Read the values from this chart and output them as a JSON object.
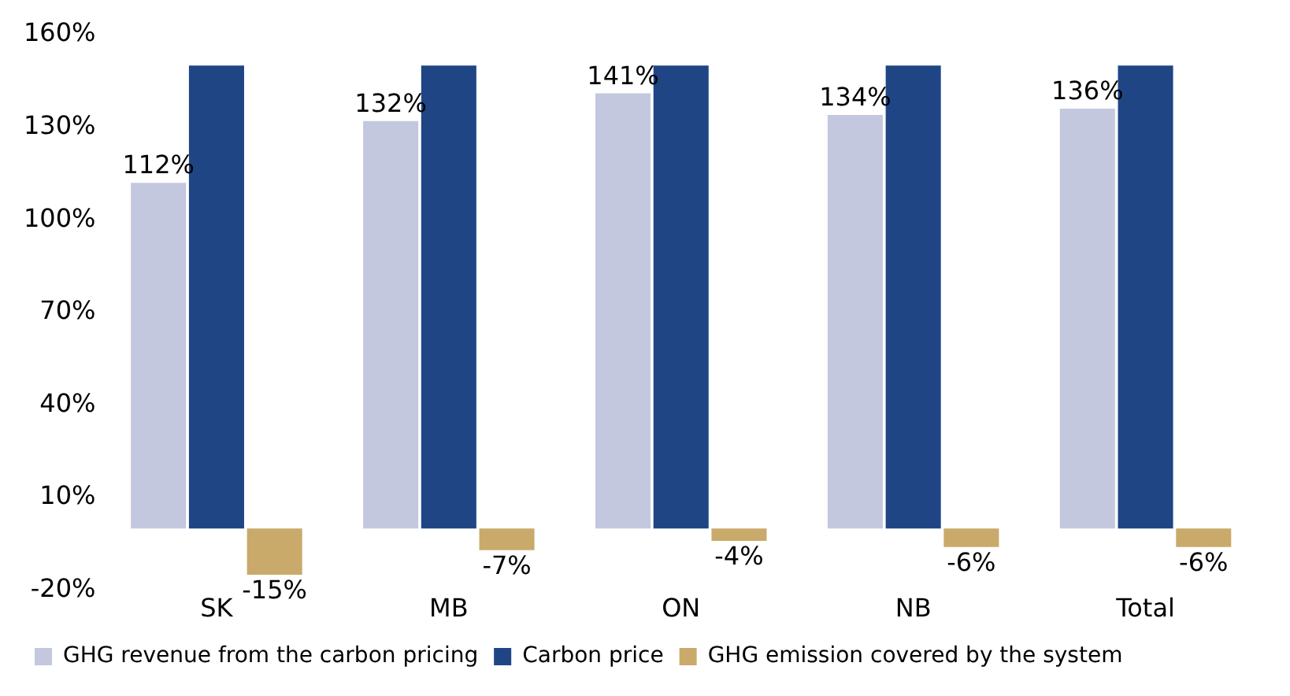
{
  "chart_data": {
    "type": "bar",
    "categories": [
      "SK",
      "MB",
      "ON",
      "NB",
      "Total"
    ],
    "series": [
      {
        "name": "GHG revenue from the carbon pricing",
        "color": "#c3c8de",
        "values": [
          112,
          132,
          141,
          134,
          136
        ],
        "value_labels": [
          "112%",
          "132%",
          "141%",
          "134%",
          "136%"
        ]
      },
      {
        "name": "Carbon price",
        "color": "#1f4585",
        "values": [
          150,
          150,
          150,
          150,
          150
        ]
      },
      {
        "name": "GHG emission covered by the system",
        "color": "#c9aa6b",
        "values": [
          -15,
          -7,
          -4,
          -6,
          -6
        ],
        "value_labels": [
          "-15%",
          "-7%",
          "-4%",
          "-6%",
          "-6%"
        ]
      }
    ],
    "ylim": [
      -20,
      160
    ],
    "yticks": [
      {
        "value": -20,
        "label": "-20%"
      },
      {
        "value": 10,
        "label": "10%"
      },
      {
        "value": 40,
        "label": "40%"
      },
      {
        "value": 70,
        "label": "70%"
      },
      {
        "value": 100,
        "label": "100%"
      },
      {
        "value": 130,
        "label": "130%"
      },
      {
        "value": 160,
        "label": "160%"
      }
    ],
    "grid": false,
    "legend": "bottom"
  }
}
